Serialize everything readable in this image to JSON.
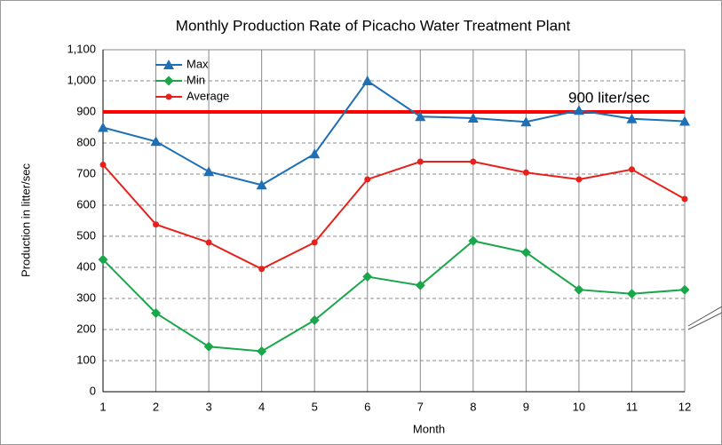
{
  "chart_data": {
    "type": "line",
    "title": "Monthly Production Rate of Picacho Water Treatment Plant",
    "x_label": "Month",
    "y_label": "Production in litter/sec",
    "x": [
      1,
      2,
      3,
      4,
      5,
      6,
      7,
      8,
      9,
      10,
      11,
      12
    ],
    "xlim": [
      1,
      12
    ],
    "xticks": [
      1,
      2,
      3,
      4,
      5,
      6,
      7,
      8,
      9,
      10,
      11,
      12
    ],
    "ylim": [
      0,
      1100
    ],
    "yticks": [
      0,
      100,
      200,
      300,
      400,
      500,
      600,
      700,
      800,
      900,
      {
        "value": 1000,
        "label": "1,000"
      },
      {
        "value": 1100,
        "label": "1,100"
      }
    ],
    "grid": true,
    "series": [
      {
        "name": "Max",
        "color": "#1f6fb5",
        "marker": "triangle",
        "values": [
          850,
          805,
          708,
          665,
          765,
          1000,
          885,
          880,
          868,
          905,
          878,
          870
        ]
      },
      {
        "name": "Min",
        "color": "#1aa64a",
        "marker": "diamond",
        "values": [
          425,
          253,
          145,
          130,
          230,
          370,
          342,
          485,
          448,
          328,
          315,
          328
        ]
      },
      {
        "name": "Average",
        "color": "#e8201c",
        "marker": "circle",
        "values": [
          730,
          538,
          480,
          395,
          480,
          683,
          740,
          740,
          705,
          683,
          715,
          620
        ]
      }
    ],
    "reference_line": {
      "value": 900,
      "label": "900 liter/sec",
      "color": "#ff0000"
    }
  }
}
